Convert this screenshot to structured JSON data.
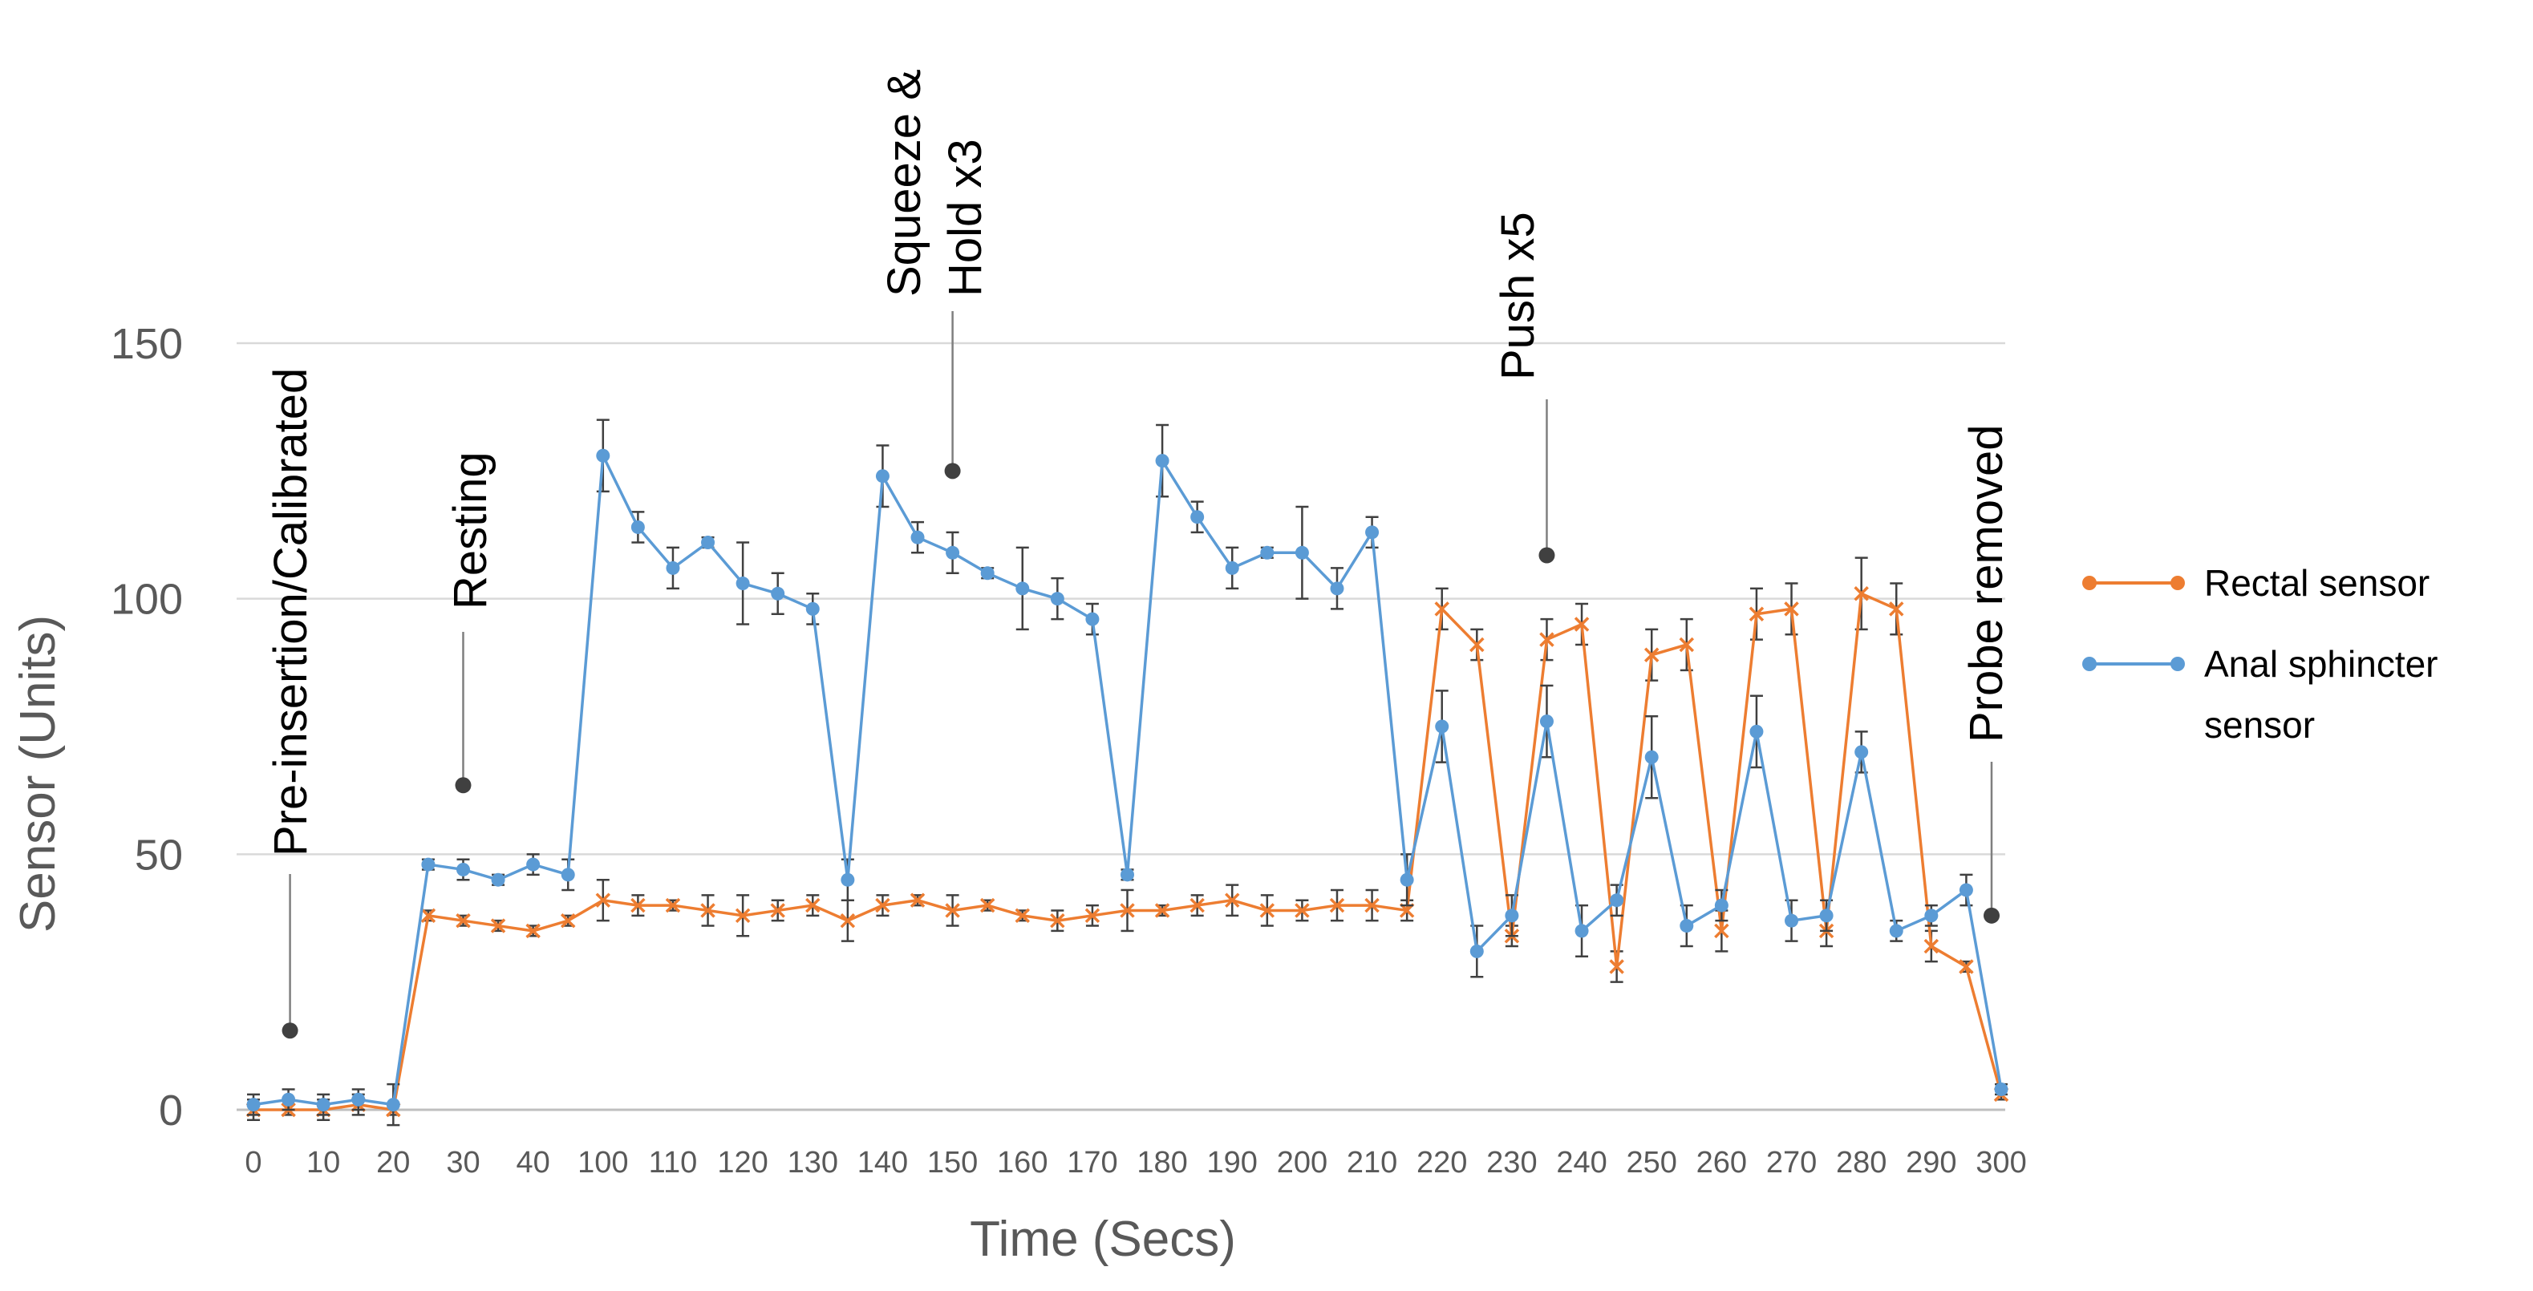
{
  "chart_data": {
    "type": "line",
    "title": "",
    "xlabel": "Time (Secs)",
    "ylabel": "Sensor (Units)",
    "ylim": [
      0,
      150
    ],
    "yticks": [
      "0",
      "50",
      "100",
      "150"
    ],
    "categories": [
      "0",
      "5",
      "10",
      "15",
      "20",
      "25",
      "30",
      "35",
      "40",
      "45",
      "100",
      "105",
      "110",
      "115",
      "120",
      "125",
      "130",
      "135",
      "140",
      "145",
      "150",
      "155",
      "160",
      "165",
      "170",
      "175",
      "180",
      "185",
      "190",
      "195",
      "200",
      "205",
      "210",
      "215",
      "220",
      "225",
      "230",
      "235",
      "240",
      "245",
      "250",
      "255",
      "260",
      "265",
      "270",
      "275",
      "280",
      "285",
      "290",
      "295",
      "300"
    ],
    "xtick_labels": [
      "0",
      "10",
      "20",
      "30",
      "40",
      "100",
      "110",
      "120",
      "130",
      "140",
      "150",
      "160",
      "170",
      "180",
      "190",
      "200",
      "210",
      "220",
      "230",
      "240",
      "250",
      "260",
      "270",
      "280",
      "290",
      "300"
    ],
    "grid": true,
    "legend_position": "right",
    "series": [
      {
        "name": "Rectal sensor",
        "color": "#ED7D31",
        "marker": "x",
        "values": [
          0,
          0,
          0,
          1,
          0,
          38,
          37,
          36,
          35,
          37,
          41,
          40,
          40,
          39,
          38,
          39,
          40,
          37,
          40,
          41,
          39,
          40,
          38,
          37,
          38,
          39,
          39,
          40,
          41,
          39,
          39,
          40,
          40,
          39,
          98,
          91,
          34,
          92,
          95,
          28,
          89,
          91,
          35,
          97,
          98,
          35,
          101,
          98,
          32,
          28,
          3
        ],
        "errors": [
          2,
          1,
          2,
          2,
          1,
          1,
          1,
          1,
          1,
          1,
          4,
          2,
          1,
          3,
          4,
          2,
          2,
          4,
          2,
          1,
          3,
          1,
          1,
          2,
          2,
          4,
          1,
          2,
          3,
          3,
          2,
          3,
          3,
          2,
          4,
          3,
          2,
          4,
          4,
          3,
          5,
          5,
          4,
          5,
          5,
          3,
          7,
          5,
          3,
          1,
          1
        ]
      },
      {
        "name": "Anal sphincter sensor",
        "color": "#5B9BD5",
        "marker": "circle",
        "values": [
          1,
          2,
          1,
          2,
          1,
          48,
          47,
          45,
          48,
          46,
          128,
          114,
          106,
          111,
          103,
          101,
          98,
          45,
          124,
          112,
          109,
          105,
          102,
          100,
          96,
          46,
          127,
          116,
          106,
          109,
          109,
          102,
          113,
          45,
          75,
          31,
          38,
          76,
          35,
          41,
          69,
          36,
          40,
          74,
          37,
          38,
          70,
          35,
          38,
          43,
          4
        ],
        "errors": [
          2,
          2,
          2,
          2,
          4,
          1,
          2,
          1,
          2,
          3,
          7,
          3,
          4,
          1,
          8,
          4,
          3,
          4,
          6,
          3,
          4,
          1,
          8,
          4,
          3,
          1,
          7,
          3,
          4,
          1,
          9,
          4,
          3,
          5,
          7,
          5,
          4,
          7,
          5,
          3,
          8,
          4,
          3,
          7,
          4,
          3,
          4,
          2,
          2,
          3,
          1
        ]
      }
    ],
    "annotations": [
      {
        "label": "Pre-insertion/Calibrated",
        "x": "5",
        "y": 15.5
      },
      {
        "label": "Resting",
        "x": "30",
        "y": 63.5
      },
      {
        "label": "Squeeze &\nHold x3",
        "x": "150",
        "y": 125
      },
      {
        "label": "Push x5",
        "x": "235",
        "y": 108.5
      },
      {
        "label": "Probe removed",
        "x": "300",
        "y": 38
      }
    ]
  }
}
